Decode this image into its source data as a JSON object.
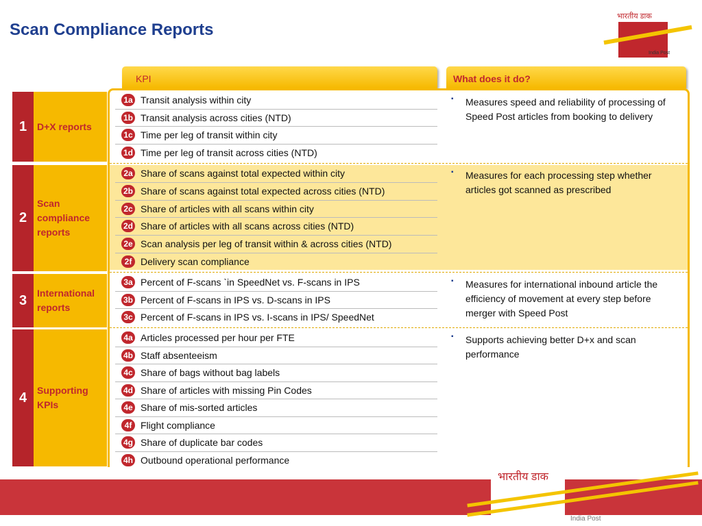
{
  "title": "Scan Compliance Reports",
  "logo": {
    "hindi": "भारतीय डाक",
    "english": "India Post"
  },
  "headers": {
    "kpi": "KPI",
    "what": "What does it do?"
  },
  "groups": [
    {
      "number": "1",
      "name": "D+X reports",
      "description": "Measures speed and reliability of processing of Speed Post articles from booking to delivery",
      "items": [
        {
          "code": "1a",
          "text": "Transit analysis within city"
        },
        {
          "code": "1b",
          "text": "Transit analysis across cities (NTD)"
        },
        {
          "code": "1c",
          "text": "Time per leg of transit within city"
        },
        {
          "code": "1d",
          "text": "Time per leg of transit across cities (NTD)"
        }
      ]
    },
    {
      "number": "2",
      "name": "Scan compliance reports",
      "description": "Measures for each processing step whether articles got scanned as prescribed",
      "items": [
        {
          "code": "2a",
          "text": "Share of scans against total expected within city"
        },
        {
          "code": "2b",
          "text": "Share of scans against total expected across cities (NTD)"
        },
        {
          "code": "2c",
          "text": "Share of articles with all scans within city"
        },
        {
          "code": "2d",
          "text": "Share of articles with all scans across cities (NTD)"
        },
        {
          "code": "2e",
          "text": "Scan analysis per leg of transit within & across cities (NTD)"
        },
        {
          "code": "2f",
          "text": "Delivery scan compliance"
        }
      ]
    },
    {
      "number": "3",
      "name": "International reports",
      "description": "Measures for international inbound article the efficiency of movement at every step before merger with Speed Post",
      "items": [
        {
          "code": "3a",
          "text": "Percent of F-scans `in SpeedNet vs. F-scans in IPS"
        },
        {
          "code": "3b",
          "text": "Percent of F-scans in IPS vs. D-scans in IPS"
        },
        {
          "code": "3c",
          "text": "Percent of F-scans in IPS vs. I-scans in IPS/ SpeedNet"
        }
      ]
    },
    {
      "number": "4",
      "name": "Supporting KPIs",
      "description": "Supports achieving better D+x and scan performance",
      "items": [
        {
          "code": "4a",
          "text": "Articles processed per hour per FTE"
        },
        {
          "code": "4b",
          "text": "Staff absenteeism"
        },
        {
          "code": "4c",
          "text": "Share of bags without bag labels"
        },
        {
          "code": "4d",
          "text": "Share of articles with missing Pin Codes"
        },
        {
          "code": "4e",
          "text": "Share of mis-sorted articles"
        },
        {
          "code": "4f",
          "text": "Flight compliance"
        },
        {
          "code": "4g",
          "text": "Share of duplicate bar codes"
        },
        {
          "code": "4h",
          "text": "Outbound operational performance"
        }
      ]
    }
  ]
}
